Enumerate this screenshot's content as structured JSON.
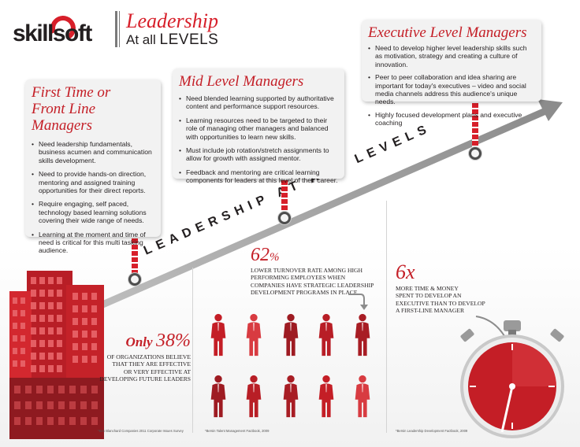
{
  "header": {
    "logo_text": "skillsoft",
    "title_line1": "Leadership",
    "title_line2_prefix": "At all",
    "title_line2_big": "LEVELS"
  },
  "slogan": "LEADERSHIP AT ALL LEVELS",
  "first_time": {
    "title_line1": "First Time or",
    "title_line2": "Front Line Managers",
    "items": [
      "Need leadership fundamentals, business acumen and communication skills development.",
      "Need to provide hands-on direction, mentoring and assigned training opportunities for their direct reports.",
      "Require engaging, self paced, technology based learning solutions covering their wide range of needs.",
      "Learning at the moment and time of need is critical for this multi tasking audience."
    ]
  },
  "mid_level": {
    "title": "Mid Level Managers",
    "items": [
      "Need blended learning supported by authoritative content and performance support resources.",
      "Learning resources need to be targeted to their role of managing other managers and balanced with opportunities to learn new skills.",
      "Must include job rotation/stretch assignments to allow for growth with assigned mentor.",
      "Feedback and mentoring are critical learning components for leaders at this level of their career."
    ]
  },
  "executive": {
    "title": "Executive Level Managers",
    "items": [
      "Need to develop higher level leadership skills such as motivation, strategy and creating a culture of innovation.",
      "Peer to peer collaboration and idea sharing are important for today's executives – video and social media channels address this audience's unique needs.",
      "Highly focused development plans and executive coaching"
    ]
  },
  "stats": {
    "s38": {
      "prefix": "Only",
      "value": "38%",
      "desc_lines": [
        "of organizations believe",
        "that they are effective",
        "or very effective at",
        "developing future leaders"
      ],
      "source": "*Ken Blanchard Companies 2011 Corporate Issues Survey"
    },
    "s62": {
      "value": "62",
      "unit": "%",
      "desc_lines": [
        "Lower turnover rate among high",
        "performing employees when",
        "companies have strategic leadership",
        "development programs in place"
      ],
      "source": "*Bersin Talent Management Factbook, 2009"
    },
    "s6x": {
      "value": "6x",
      "desc_lines": [
        "More time & money",
        "spent to develop an",
        "executive than to develop",
        "a first-line manager"
      ],
      "source": "*Bersin Leadership Development Factbook, 2009"
    }
  },
  "colors": {
    "brand_red": "#d71f2a",
    "dark_red": "#9e1b22",
    "text": "#231f20",
    "box_bg": "#f2f2f2",
    "arrow_gray": "#8c8c8c"
  },
  "icons": [
    "building-icon",
    "person-icon",
    "stopwatch-icon",
    "pin-icon",
    "arrow-icon"
  ]
}
